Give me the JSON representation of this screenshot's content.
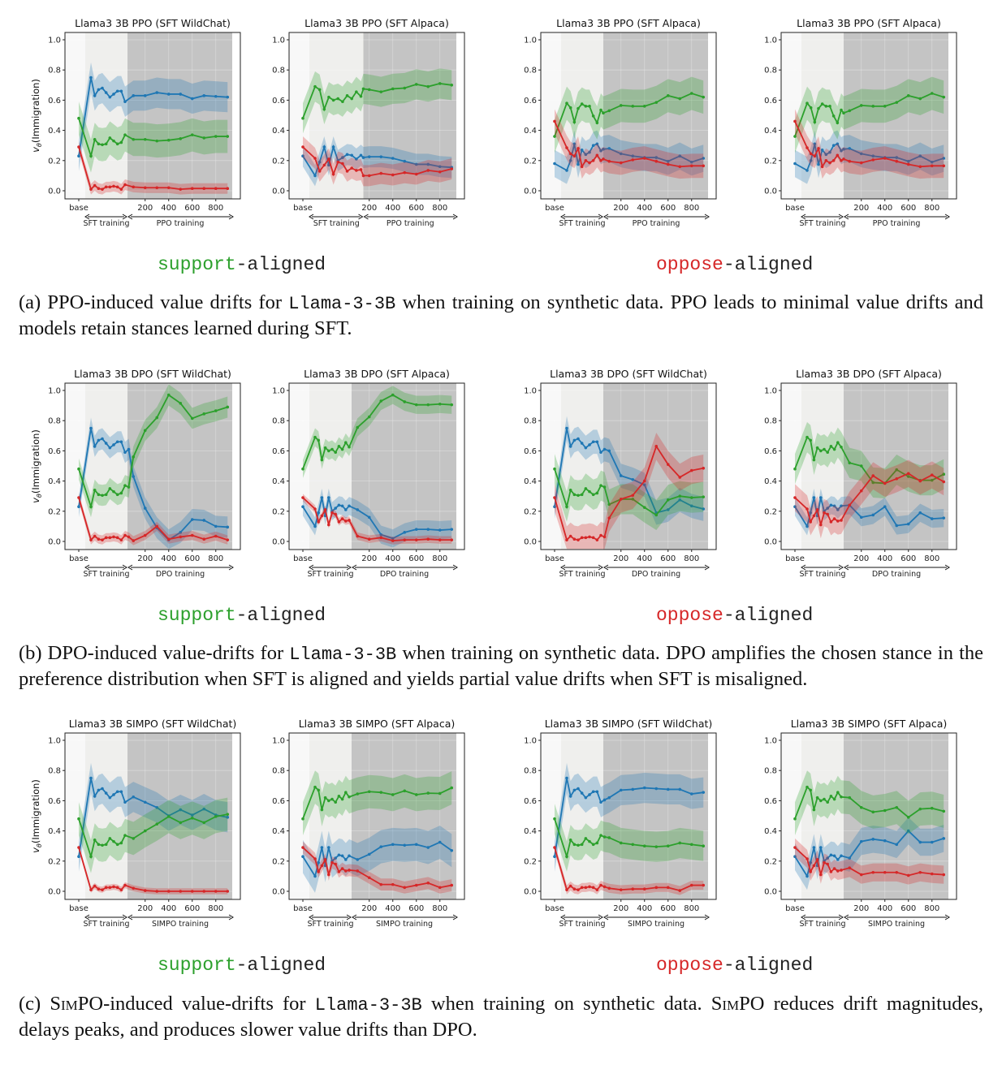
{
  "figure": {
    "rows": [
      {
        "support_word": "support",
        "oppose_word": "oppose",
        "aligned_suffix": "-aligned",
        "caption": {
          "a": "(a) PPO-induced value drifts for ",
          "code": "Llama-3-3B",
          "b": " when training on synthetic data. PPO leads to minimal value drifts and models retain stances learned during SFT."
        }
      },
      {
        "support_word": "support",
        "oppose_word": "oppose",
        "aligned_suffix": "-aligned",
        "caption": {
          "a": "(b) DPO-induced value-drifts for ",
          "code": "Llama-3-3B",
          "b": " when training on synthetic data. DPO amplifies the chosen stance in the preference distribution when SFT is aligned and yields partial value drifts when SFT is misaligned."
        }
      },
      {
        "support_word": "support",
        "oppose_word": "oppose",
        "aligned_suffix": "-aligned",
        "caption": {
          "a": "(c) ",
          "sc1": "SimPO",
          "b": "-induced value-drifts for ",
          "code": "Llama-3-3B",
          "c": " when training on synthetic data.  ",
          "sc2": "SimPO",
          "d": " reduces drift magnitudes, delays peaks, and produces slower value drifts than DPO."
        }
      }
    ]
  },
  "colors": {
    "blue": "#1f77b4",
    "green": "#2ca02c",
    "red": "#d62728",
    "sft_region": "#efefed",
    "train_region": "#c4c4c4"
  },
  "common": {
    "ylabel_v": "v",
    "ylabel_sub": "θ",
    "ylabel_rest": "(Immigration)",
    "sft_label": "SFT training",
    "yticks": [
      "0.0",
      "0.2",
      "0.4",
      "0.6",
      "0.8",
      "1.0"
    ],
    "xticks": [
      "base",
      "200",
      "400",
      "600",
      "800"
    ]
  },
  "sft_runs": {
    "wildchat": {
      "base": {
        "blue": 0.23,
        "green": 0.48,
        "red": 0.29
      },
      "blue": [
        0.75,
        0.63,
        0.67,
        0.68,
        0.65,
        0.62,
        0.64,
        0.66,
        0.66,
        0.59
      ],
      "green": [
        0.23,
        0.34,
        0.31,
        0.305,
        0.31,
        0.35,
        0.33,
        0.31,
        0.32,
        0.37
      ],
      "red": [
        0.01,
        0.035,
        0.015,
        0.01,
        0.025,
        0.025,
        0.03,
        0.025,
        0.01,
        0.04
      ]
    },
    "alpaca": {
      "base": {
        "blue": 0.23,
        "green": 0.48,
        "red": 0.29
      },
      "blue": [
        0.1,
        0.19,
        0.29,
        0.17,
        0.29,
        0.2,
        0.22,
        0.24,
        0.235,
        0.21,
        0.235
      ],
      "green": [
        0.69,
        0.67,
        0.54,
        0.62,
        0.6,
        0.61,
        0.59,
        0.63,
        0.61,
        0.655,
        0.625
      ],
      "red": [
        0.215,
        0.13,
        0.17,
        0.21,
        0.11,
        0.19,
        0.18,
        0.13,
        0.15,
        0.135,
        0.14
      ]
    },
    "alpaca_ppo_oppose": {
      "base": {
        "blue": 0.18,
        "green": 0.36,
        "red": 0.46
      },
      "blue": [
        0.135,
        0.2,
        0.31,
        0.175,
        0.27,
        0.24,
        0.255,
        0.3,
        0.31,
        0.265
      ],
      "green": [
        0.58,
        0.55,
        0.455,
        0.545,
        0.575,
        0.56,
        0.56,
        0.495,
        0.45,
        0.535
      ],
      "red": [
        0.285,
        0.245,
        0.23,
        0.28,
        0.16,
        0.2,
        0.185,
        0.2,
        0.235,
        0.2
      ]
    }
  },
  "chart_data": [
    {
      "type": "line",
      "title": "Llama3 3B PPO (SFT WildChat)",
      "method_label": "PPO training",
      "sft": "wildchat",
      "train_start": 50,
      "ylim": [
        -0.05,
        1.05
      ],
      "steps": [
        100,
        200,
        300,
        400,
        500,
        600,
        700,
        800,
        900
      ],
      "blue": [
        0.63,
        0.63,
        0.65,
        0.64,
        0.64,
        0.61,
        0.63,
        0.625,
        0.62
      ],
      "green": [
        0.34,
        0.34,
        0.33,
        0.335,
        0.345,
        0.37,
        0.35,
        0.36,
        0.36
      ],
      "red": [
        0.025,
        0.02,
        0.02,
        0.02,
        0.01,
        0.015,
        0.015,
        0.015,
        0.015
      ],
      "band": {
        "blue": 0.1,
        "green": 0.11,
        "red": 0.035
      }
    },
    {
      "type": "line",
      "title": "Llama3 3B PPO (SFT Alpaca)",
      "method_label": "PPO training",
      "sft": "alpaca",
      "train_start": 150,
      "ylim": [
        -0.05,
        1.05
      ],
      "steps": [
        150,
        200,
        300,
        400,
        500,
        600,
        700,
        800,
        900
      ],
      "blue": [
        0.22,
        0.225,
        0.225,
        0.215,
        0.195,
        0.175,
        0.175,
        0.16,
        0.155
      ],
      "green": [
        0.675,
        0.67,
        0.655,
        0.675,
        0.68,
        0.705,
        0.69,
        0.71,
        0.7
      ],
      "red": [
        0.1,
        0.1,
        0.115,
        0.105,
        0.12,
        0.11,
        0.135,
        0.125,
        0.145
      ],
      "band": {
        "blue": 0.07,
        "green": 0.1,
        "red": 0.07
      }
    },
    {
      "type": "line",
      "title": "Llama3 3B PPO (SFT Alpaca)",
      "method_label": "PPO training",
      "sft": "alpaca_ppo_oppose",
      "train_start": 50,
      "ylim": [
        -0.05,
        1.05
      ],
      "steps": [
        50,
        100,
        200,
        300,
        400,
        500,
        600,
        700,
        800,
        900
      ],
      "blue": [
        0.275,
        0.28,
        0.245,
        0.23,
        0.22,
        0.22,
        0.195,
        0.23,
        0.19,
        0.215
      ],
      "green": [
        0.515,
        0.53,
        0.565,
        0.56,
        0.56,
        0.585,
        0.63,
        0.61,
        0.645,
        0.62
      ],
      "red": [
        0.21,
        0.195,
        0.185,
        0.205,
        0.215,
        0.195,
        0.175,
        0.16,
        0.165,
        0.165
      ],
      "band": {
        "blue": 0.09,
        "green": 0.11,
        "red": 0.08
      }
    },
    {
      "type": "line",
      "title": "Llama3 3B PPO (SFT Alpaca)",
      "method_label": "PPO training",
      "sft": "alpaca_ppo_oppose",
      "train_start": 50,
      "ylim": [
        -0.05,
        1.05
      ],
      "steps": [
        50,
        100,
        200,
        300,
        400,
        500,
        600,
        700,
        800,
        900
      ],
      "blue": [
        0.275,
        0.28,
        0.245,
        0.23,
        0.22,
        0.22,
        0.195,
        0.23,
        0.19,
        0.215
      ],
      "green": [
        0.515,
        0.53,
        0.565,
        0.56,
        0.56,
        0.585,
        0.63,
        0.61,
        0.645,
        0.62
      ],
      "red": [
        0.21,
        0.195,
        0.185,
        0.205,
        0.215,
        0.195,
        0.175,
        0.16,
        0.165,
        0.165
      ],
      "band": {
        "blue": 0.09,
        "green": 0.11,
        "red": 0.08
      }
    },
    {
      "type": "line",
      "title": "Llama3 3B DPO (SFT WildChat)",
      "method_label": "DPO training",
      "sft": "wildchat",
      "train_start": 50,
      "ylim": [
        -0.05,
        1.05
      ],
      "steps": [
        60,
        100,
        200,
        300,
        400,
        500,
        600,
        700,
        800,
        900
      ],
      "blue": [
        0.61,
        0.43,
        0.22,
        0.09,
        0.01,
        0.06,
        0.145,
        0.14,
        0.1,
        0.095
      ],
      "green": [
        0.36,
        0.56,
        0.735,
        0.82,
        0.97,
        0.915,
        0.815,
        0.845,
        0.865,
        0.89
      ],
      "red": [
        0.03,
        0.005,
        0.04,
        0.1,
        0.015,
        0.03,
        0.04,
        0.015,
        0.035,
        0.01
      ],
      "band": {
        "blue": 0.07,
        "green": 0.07,
        "red": 0.03
      }
    },
    {
      "type": "line",
      "title": "Llama3 3B DPO (SFT Alpaca)",
      "method_label": "DPO training",
      "sft": "alpaca",
      "train_start": 50,
      "ylim": [
        -0.05,
        1.05
      ],
      "steps": [
        100,
        200,
        300,
        400,
        500,
        600,
        700,
        800,
        900
      ],
      "blue": [
        0.21,
        0.16,
        0.045,
        0.02,
        0.06,
        0.08,
        0.08,
        0.075,
        0.08
      ],
      "green": [
        0.755,
        0.825,
        0.93,
        0.97,
        0.925,
        0.905,
        0.905,
        0.91,
        0.905
      ],
      "red": [
        0.035,
        0.015,
        0.025,
        0.005,
        0.01,
        0.01,
        0.015,
        0.01,
        0.01
      ],
      "band": {
        "blue": 0.06,
        "green": 0.06,
        "red": 0.025
      }
    },
    {
      "type": "line",
      "title": "Llama3 3B DPO (SFT WildChat)",
      "method_label": "DPO training",
      "sft": "wildchat",
      "train_start": 50,
      "ylim": [
        -0.05,
        1.05
      ],
      "steps": [
        60,
        100,
        200,
        300,
        400,
        500,
        600,
        700,
        800,
        900
      ],
      "blue": [
        0.61,
        0.6,
        0.435,
        0.41,
        0.375,
        0.19,
        0.21,
        0.275,
        0.235,
        0.215
      ],
      "green": [
        0.36,
        0.245,
        0.28,
        0.28,
        0.225,
        0.175,
        0.275,
        0.3,
        0.29,
        0.295
      ],
      "red": [
        0.03,
        0.155,
        0.28,
        0.305,
        0.4,
        0.63,
        0.51,
        0.425,
        0.47,
        0.485
      ],
      "band": {
        "blue": 0.08,
        "green": 0.1,
        "red": 0.09
      }
    },
    {
      "type": "line",
      "title": "Llama3 3B DPO (SFT Alpaca)",
      "method_label": "DPO training",
      "sft": "alpaca",
      "train_start": 50,
      "ylim": [
        -0.05,
        1.05
      ],
      "steps": [
        100,
        200,
        300,
        400,
        500,
        600,
        700,
        800,
        900
      ],
      "blue": [
        0.24,
        0.16,
        0.175,
        0.23,
        0.105,
        0.115,
        0.19,
        0.15,
        0.155
      ],
      "green": [
        0.52,
        0.5,
        0.39,
        0.385,
        0.475,
        0.43,
        0.405,
        0.405,
        0.445
      ],
      "red": [
        0.24,
        0.335,
        0.435,
        0.385,
        0.415,
        0.45,
        0.4,
        0.44,
        0.395
      ],
      "band": {
        "blue": 0.06,
        "green": 0.1,
        "red": 0.09
      }
    },
    {
      "type": "line",
      "title": "Llama3 3B SIMPO (SFT WildChat)",
      "method_label": "SIMPO training",
      "sft": "wildchat",
      "train_start": 50,
      "ylim": [
        -0.05,
        1.05
      ],
      "steps": [
        100,
        200,
        300,
        400,
        500,
        600,
        700,
        800,
        900
      ],
      "blue": [
        0.625,
        0.59,
        0.555,
        0.5,
        0.54,
        0.505,
        0.545,
        0.505,
        0.49
      ],
      "green": [
        0.35,
        0.4,
        0.445,
        0.495,
        0.455,
        0.485,
        0.455,
        0.495,
        0.51
      ],
      "red": [
        0.02,
        0.005,
        0.0,
        0.0,
        0.0,
        0.0,
        0.0,
        0.0,
        0.0
      ],
      "band": {
        "blue": 0.1,
        "green": 0.11,
        "red": 0.02
      }
    },
    {
      "type": "line",
      "title": "Llama3 3B SIMPO (SFT Alpaca)",
      "method_label": "SIMPO training",
      "sft": "alpaca",
      "train_start": 50,
      "ylim": [
        -0.05,
        1.05
      ],
      "steps": [
        100,
        200,
        300,
        400,
        500,
        600,
        700,
        800,
        900
      ],
      "blue": [
        0.21,
        0.245,
        0.295,
        0.31,
        0.305,
        0.31,
        0.29,
        0.325,
        0.27
      ],
      "green": [
        0.645,
        0.66,
        0.655,
        0.64,
        0.665,
        0.64,
        0.65,
        0.648,
        0.685
      ],
      "red": [
        0.135,
        0.09,
        0.045,
        0.045,
        0.025,
        0.04,
        0.055,
        0.025,
        0.04
      ],
      "band": {
        "blue": 0.11,
        "green": 0.11,
        "red": 0.04
      }
    },
    {
      "type": "line",
      "title": "Llama3 3B SIMPO (SFT WildChat)",
      "method_label": "SIMPO training",
      "sft": "wildchat",
      "train_start": 50,
      "ylim": [
        -0.05,
        1.05
      ],
      "steps": [
        60,
        100,
        200,
        300,
        400,
        500,
        600,
        700,
        800,
        900
      ],
      "blue": [
        0.605,
        0.62,
        0.67,
        0.675,
        0.685,
        0.68,
        0.675,
        0.675,
        0.645,
        0.655
      ],
      "green": [
        0.36,
        0.355,
        0.32,
        0.31,
        0.3,
        0.295,
        0.3,
        0.32,
        0.31,
        0.3
      ],
      "red": [
        0.03,
        0.02,
        0.01,
        0.015,
        0.015,
        0.025,
        0.025,
        0.005,
        0.04,
        0.04
      ],
      "band": {
        "blue": 0.1,
        "green": 0.1,
        "red": 0.03
      }
    },
    {
      "type": "line",
      "title": "Llama3 3B SIMPO (SFT Alpaca)",
      "method_label": "SIMPO training",
      "sft": "alpaca",
      "train_start": 50,
      "ylim": [
        -0.05,
        1.05
      ],
      "steps": [
        100,
        200,
        300,
        400,
        500,
        600,
        700,
        800,
        900
      ],
      "blue": [
        0.22,
        0.33,
        0.345,
        0.335,
        0.31,
        0.4,
        0.325,
        0.325,
        0.35
      ],
      "green": [
        0.62,
        0.555,
        0.525,
        0.535,
        0.555,
        0.49,
        0.545,
        0.55,
        0.53
      ],
      "red": [
        0.155,
        0.11,
        0.125,
        0.125,
        0.125,
        0.105,
        0.125,
        0.115,
        0.11
      ],
      "band": {
        "blue": 0.09,
        "green": 0.11,
        "red": 0.06
      }
    }
  ]
}
